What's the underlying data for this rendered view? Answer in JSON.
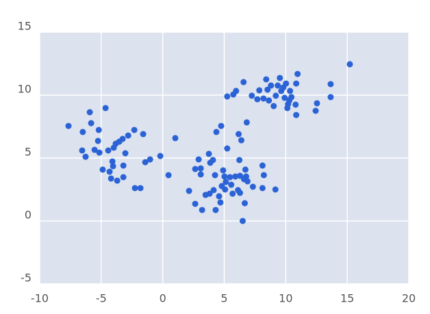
{
  "chart_data": {
    "type": "scatter",
    "color": "#2b63d6",
    "background": "#dce2ee",
    "grid": true,
    "xlim": [
      -10,
      20
    ],
    "ylim": [
      -5,
      15
    ],
    "xticks": [
      -10,
      -5,
      0,
      5,
      10,
      15,
      20
    ],
    "yticks": [
      -5,
      0,
      5,
      10,
      15
    ],
    "x": [
      -7.66,
      -6.5,
      -5.93,
      -5.82,
      -5.2,
      -4.65,
      -6.55,
      -6.27,
      -5.54,
      -5.26,
      -5.15,
      -4.88,
      -4.43,
      -4.32,
      -4.2,
      -4.09,
      -4.04,
      -3.98,
      -3.82,
      -3.7,
      -3.53,
      -3.26,
      -3.2,
      -3.2,
      -3.04,
      -2.81,
      -2.31,
      -2.26,
      -1.81,
      -1.59,
      -1.42,
      -1.03,
      -0.2,
      0.47,
      1.02,
      2.14,
      2.64,
      2.64,
      2.92,
      3.09,
      3.09,
      3.2,
      3.48,
      3.75,
      3.81,
      3.86,
      4.08,
      4.14,
      4.25,
      4.3,
      4.36,
      4.58,
      4.69,
      4.75,
      4.8,
      4.91,
      5.02,
      5.07,
      5.13,
      5.24,
      5.46,
      5.57,
      5.68,
      5.9,
      6.12,
      6.17,
      6.23,
      6.28,
      6.28,
      6.39,
      6.5,
      6.61,
      6.67,
      6.72,
      6.78,
      6.83,
      6.89,
      7.33,
      8.11,
      8.22,
      8.11,
      9.16,
      5.24,
      5.74,
      5.96,
      6.57,
      7.24,
      7.69,
      7.85,
      8.19,
      8.41,
      8.52,
      8.63,
      8.8,
      9.02,
      9.19,
      9.35,
      9.52,
      9.63,
      9.8,
      9.91,
      10.02,
      10.13,
      10.19,
      10.29,
      10.35,
      10.46,
      10.8,
      10.85,
      10.85,
      10.96,
      12.43,
      12.54,
      13.65,
      13.65,
      15.21
    ],
    "values": [
      7.55,
      7.07,
      8.64,
      7.77,
      7.23,
      8.97,
      5.6,
      5.1,
      5.65,
      6.36,
      5.43,
      4.08,
      5.6,
      3.91,
      3.37,
      4.73,
      4.35,
      5.82,
      6.14,
      3.2,
      6.3,
      6.52,
      4.4,
      3.48,
      5.38,
      6.79,
      7.23,
      2.61,
      2.61,
      6.9,
      4.67,
      4.89,
      5.16,
      3.64,
      6.58,
      2.39,
      1.36,
      4.13,
      4.89,
      4.18,
      3.7,
      0.87,
      2.07,
      5.33,
      2.17,
      4.62,
      4.84,
      2.45,
      3.64,
      0.87,
      7.07,
      1.96,
      1.47,
      7.55,
      2.77,
      4.02,
      3.53,
      2.5,
      3.1,
      5.76,
      3.48,
      2.88,
      2.17,
      3.53,
      2.45,
      6.9,
      4.84,
      3.59,
      2.23,
      6.41,
      0,
      3.32,
      1.41,
      4.08,
      3.53,
      7.83,
      3.15,
      2.72,
      4.4,
      3.64,
      2.61,
      2.5,
      9.89,
      10.05,
      10.33,
      11.03,
      9.95,
      9.67,
      10.38,
      9.73,
      11.25,
      10.43,
      9.57,
      10.76,
      9.13,
      9.95,
      10.76,
      11.36,
      10.33,
      10.6,
      9.78,
      10.92,
      8.97,
      9.29,
      9.57,
      10.33,
      9.84,
      9.24,
      8.42,
      10.92,
      11.68,
      8.75,
      9.35,
      10.87,
      9.84,
      12.45
    ]
  }
}
